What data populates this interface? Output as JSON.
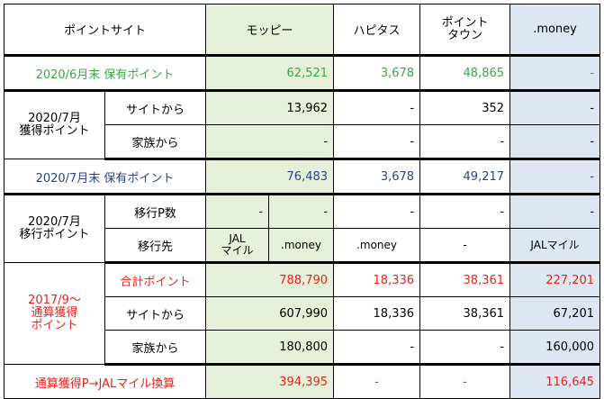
{
  "header": {
    "site": "ポイントサイト",
    "moppy": "モッピー",
    "hapitas": "ハピタス",
    "pointtown_l1": "ポイント",
    "pointtown_l2": "タウン",
    "money": ".money"
  },
  "jun": {
    "label": "2020/6月末 保有ポイント",
    "moppy": "62,521",
    "hapitas": "3,678",
    "pointtown": "48,865",
    "money": "-"
  },
  "july_earned": {
    "group_l1": "2020/7月",
    "group_l2": "獲得ポイント",
    "site_label": "サイトから",
    "site_moppy": "13,962",
    "site_hapitas": "-",
    "site_pointtown": "352",
    "site_money": "-",
    "family_label": "家族から",
    "family_moppy": "-",
    "family_hapitas": "-",
    "family_pointtown": "-",
    "family_money": "-"
  },
  "jul": {
    "label": "2020/7月末 保有ポイント",
    "moppy": "76,483",
    "hapitas": "3,678",
    "pointtown": "49,217",
    "money": "-"
  },
  "transfer": {
    "group_l1": "2020/7月",
    "group_l2": "移行ポイント",
    "count_label": "移行P数",
    "count_moppy_a": "-",
    "count_moppy_b": "-",
    "count_hapitas": "-",
    "count_pointtown": "-",
    "count_money": "-",
    "dest_label": "移行先",
    "dest_moppy_a_l1": "JAL",
    "dest_moppy_a_l2": "マイル",
    "dest_moppy_b": ".money",
    "dest_hapitas": ".money",
    "dest_pointtown": "-",
    "dest_money": "JALマイル"
  },
  "cumulative": {
    "group_l1": "2017/9～",
    "group_l2": "通算獲得",
    "group_l3": "ポイント",
    "total_label": "合計ポイント",
    "total_moppy": "788,790",
    "total_hapitas": "18,336",
    "total_pointtown": "38,361",
    "total_money": "227,201",
    "site_label": "サイトから",
    "site_moppy": "607,990",
    "site_hapitas": "18,336",
    "site_pointtown": "38,361",
    "site_money": "67,201",
    "family_label": "家族から",
    "family_moppy": "180,800",
    "family_hapitas": "-",
    "family_pointtown": "-",
    "family_money": "160,000"
  },
  "conversion": {
    "label": "通算獲得P→JALマイル換算",
    "moppy": "394,395",
    "hapitas": "-",
    "pointtown": "-",
    "money": "116,645"
  },
  "colors": {
    "moppy_column": "#e6efd8",
    "money_column": "#dde6f2",
    "green_text": "#3aa845",
    "blue_text": "#2c3f8e",
    "red_text": "#e8231b"
  }
}
